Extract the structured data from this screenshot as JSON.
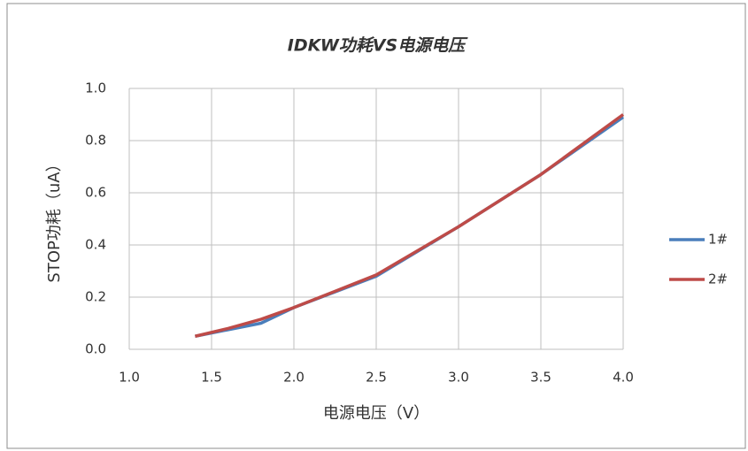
{
  "chart_data": {
    "type": "line",
    "title": "IDKW功耗VS电源电压",
    "x_label": "电源电压（V）",
    "y_label": "STOP功耗（uA）",
    "x": [
      1.4,
      1.6,
      1.8,
      2.0,
      2.5,
      3.0,
      3.5,
      4.0
    ],
    "series": [
      {
        "name": "1#",
        "color": "#4a7ebb",
        "values": [
          0.05,
          0.075,
          0.1,
          0.16,
          0.28,
          0.47,
          0.67,
          0.89
        ]
      },
      {
        "name": "2#",
        "color": "#be4b48",
        "values": [
          0.05,
          0.08,
          0.115,
          0.16,
          0.285,
          0.47,
          0.67,
          0.9
        ]
      }
    ],
    "xlim": [
      1.0,
      4.0
    ],
    "xticks": [
      {
        "value": 1,
        "label": "1.0"
      },
      1.5,
      {
        "value": 2,
        "label": "2.0"
      },
      2.5,
      {
        "value": 3,
        "label": "3.0"
      },
      3.5,
      {
        "value": 4,
        "label": "4.0"
      }
    ],
    "ylim": [
      0,
      1.0
    ],
    "yticks": [
      {
        "value": 0,
        "label": "0.0"
      },
      0.2,
      0.4,
      0.6,
      0.8,
      {
        "value": 1,
        "label": "1.0"
      }
    ],
    "grid": true,
    "legend": "right"
  }
}
